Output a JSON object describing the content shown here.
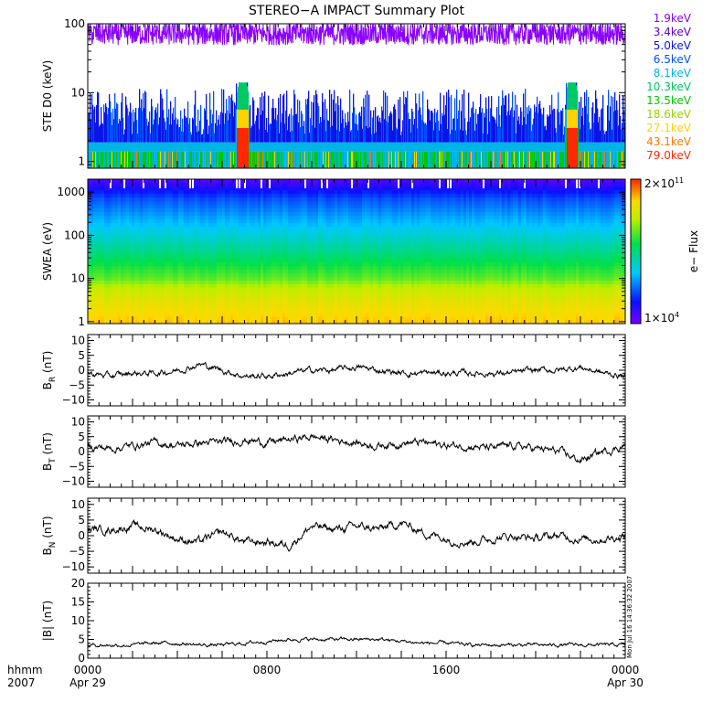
{
  "title": "STEREO−A IMPACT Summary Plot",
  "stamp": "Mon Jul 16 14:36:32 2007",
  "time_axis": {
    "label_line1": "hhmm",
    "label_line2": "2007",
    "ticks": [
      {
        "hours": 0,
        "hhmm": "0000",
        "date": "Apr 29"
      },
      {
        "hours": 8,
        "hhmm": "0800",
        "date": ""
      },
      {
        "hours": 16,
        "hhmm": "1600",
        "date": ""
      },
      {
        "hours": 24,
        "hhmm": "0000",
        "date": "Apr 30"
      }
    ]
  },
  "colorbar": {
    "label": "e− Flux",
    "max_label": "2×10",
    "max_exp": "11",
    "min_label": "1×10",
    "min_exp": "4"
  },
  "chart_data": [
    {
      "type": "line",
      "panel": "ste",
      "ylabel": "STE D0 (keV)",
      "yscale": "log",
      "ylim": [
        0.8,
        100
      ],
      "yticks": [
        {
          "v": 1,
          "t": "1"
        },
        {
          "v": 10,
          "t": "10"
        },
        {
          "v": 100,
          "t": "100"
        }
      ],
      "legend": [
        {
          "name": "1.9keV",
          "color": "#8a00ff"
        },
        {
          "name": "3.4keV",
          "color": "#5a00e6"
        },
        {
          "name": "5.0keV",
          "color": "#0a14e6"
        },
        {
          "name": "6.5keV",
          "color": "#0050ff"
        },
        {
          "name": "8.1keV",
          "color": "#00b4e6"
        },
        {
          "name": "10.3keV",
          "color": "#00c864"
        },
        {
          "name": "13.5keV",
          "color": "#00c800"
        },
        {
          "name": "18.6keV",
          "color": "#9ad200"
        },
        {
          "name": "27.1keV",
          "color": "#ffd200"
        },
        {
          "name": "43.1keV",
          "color": "#ff7800"
        },
        {
          "name": "79.0keV",
          "color": "#ff2800"
        }
      ],
      "series_approx": [
        {
          "name": "1.9keV",
          "level": 70,
          "range": [
            45,
            95
          ]
        },
        {
          "name": "3.4keV",
          "level": 4,
          "range": [
            2.5,
            12
          ]
        },
        {
          "name": "5.0keV",
          "level": 3,
          "range": [
            2,
            8
          ]
        },
        {
          "name": "8.1keV",
          "level": 1.8,
          "range": [
            1.5,
            2.2
          ]
        },
        {
          "name": "79.0keV",
          "level": 1.0,
          "range": [
            0.8,
            2
          ]
        }
      ],
      "events": [
        {
          "hours": 6.9,
          "peak": 12
        },
        {
          "hours": 21.6,
          "peak": 14
        }
      ]
    },
    {
      "type": "heatmap",
      "panel": "swea",
      "ylabel": "SWEA (eV)",
      "yscale": "log",
      "ylim": [
        0.9,
        2000
      ],
      "yticks": [
        {
          "v": 1,
          "t": "1"
        },
        {
          "v": 10,
          "t": "10"
        },
        {
          "v": 100,
          "t": "100"
        },
        {
          "v": 1000,
          "t": "1000"
        }
      ],
      "energy_profile": [
        {
          "ev": 1,
          "flux": 0.86
        },
        {
          "ev": 3,
          "flux": 0.8
        },
        {
          "ev": 6,
          "flux": 0.74
        },
        {
          "ev": 10,
          "flux": 0.64
        },
        {
          "ev": 30,
          "flux": 0.52
        },
        {
          "ev": 100,
          "flux": 0.4
        },
        {
          "ev": 300,
          "flux": 0.3
        },
        {
          "ev": 700,
          "flux": 0.22
        },
        {
          "ev": 1500,
          "flux": 0.1
        },
        {
          "ev": 2000,
          "flux": 0.05
        }
      ]
    },
    {
      "type": "line",
      "panel": "br",
      "ylabel": "B",
      "ylabel_sub": "R",
      "ylabel_unit": " (nT)",
      "ylim": [
        -12,
        12
      ],
      "yticks": [
        {
          "v": -10,
          "t": "−10"
        },
        {
          "v": -5,
          "t": "−5"
        },
        {
          "v": 0,
          "t": "0"
        },
        {
          "v": 5,
          "t": "5"
        },
        {
          "v": 10,
          "t": "10"
        }
      ],
      "x_hours": [
        0,
        1,
        2,
        3,
        4,
        5,
        6,
        7,
        8,
        9,
        10,
        11,
        12,
        13,
        14,
        15,
        16,
        17,
        18,
        19,
        20,
        21,
        22,
        23,
        24
      ],
      "y": [
        -1,
        -2,
        -1,
        -1,
        0,
        2,
        0,
        -2,
        -2,
        -1,
        0,
        0,
        1,
        0,
        -1,
        -1,
        -1,
        -1,
        -1,
        -1,
        0,
        0,
        1,
        -1,
        -2
      ],
      "noise": 1.3
    },
    {
      "type": "line",
      "panel": "bt",
      "ylabel": "B",
      "ylabel_sub": "T",
      "ylabel_unit": " (nT)",
      "ylim": [
        -12,
        12
      ],
      "yticks": [
        {
          "v": -10,
          "t": "−10"
        },
        {
          "v": -5,
          "t": "−5"
        },
        {
          "v": 0,
          "t": "0"
        },
        {
          "v": 5,
          "t": "5"
        },
        {
          "v": 10,
          "t": "10"
        }
      ],
      "x_hours": [
        0,
        1,
        2,
        3,
        4,
        5,
        6,
        7,
        8,
        9,
        10,
        11,
        12,
        13,
        14,
        15,
        16,
        17,
        18,
        19,
        20,
        21,
        22,
        23,
        24
      ],
      "y": [
        2,
        1,
        2,
        3,
        2,
        3,
        3,
        4,
        3,
        4,
        5,
        4,
        3,
        2,
        3,
        3,
        2,
        2,
        1,
        2,
        1,
        0,
        -3,
        0,
        2
      ],
      "noise": 1.6
    },
    {
      "type": "line",
      "panel": "bn",
      "ylabel": "B",
      "ylabel_sub": "N",
      "ylabel_unit": " (nT)",
      "ylim": [
        -12,
        12
      ],
      "yticks": [
        {
          "v": -10,
          "t": "−10"
        },
        {
          "v": -5,
          "t": "−5"
        },
        {
          "v": 0,
          "t": "0"
        },
        {
          "v": 5,
          "t": "5"
        },
        {
          "v": 10,
          "t": "10"
        }
      ],
      "x_hours": [
        0,
        1,
        2,
        3,
        4,
        5,
        6,
        7,
        8,
        9,
        10,
        11,
        12,
        13,
        14,
        15,
        16,
        17,
        18,
        19,
        20,
        21,
        22,
        23,
        24
      ],
      "y": [
        2,
        2,
        3,
        2,
        -1,
        -2,
        1,
        -2,
        -2,
        -3,
        3,
        2,
        3,
        2,
        4,
        1,
        -1,
        -2,
        -1,
        0,
        -1,
        0,
        -1,
        -1,
        0
      ],
      "noise": 1.6
    },
    {
      "type": "line",
      "panel": "bmag",
      "ylabel": "|B| (nT)",
      "ylim": [
        0,
        20
      ],
      "yticks": [
        {
          "v": 0,
          "t": "0"
        },
        {
          "v": 5,
          "t": "5"
        },
        {
          "v": 10,
          "t": "10"
        },
        {
          "v": 15,
          "t": "15"
        },
        {
          "v": 20,
          "t": "20"
        }
      ],
      "x_hours": [
        0,
        1,
        2,
        3,
        4,
        5,
        6,
        7,
        8,
        9,
        10,
        11,
        12,
        13,
        14,
        15,
        16,
        17,
        18,
        19,
        20,
        21,
        22,
        23,
        24
      ],
      "y": [
        3.5,
        3.5,
        3.5,
        4,
        4,
        3.5,
        3.5,
        4,
        4.5,
        5,
        5,
        5,
        5,
        5,
        4.5,
        4,
        4,
        3.5,
        3.5,
        3.5,
        3.5,
        3.5,
        3.5,
        3.5,
        3.5
      ],
      "noise": 0.6
    }
  ]
}
